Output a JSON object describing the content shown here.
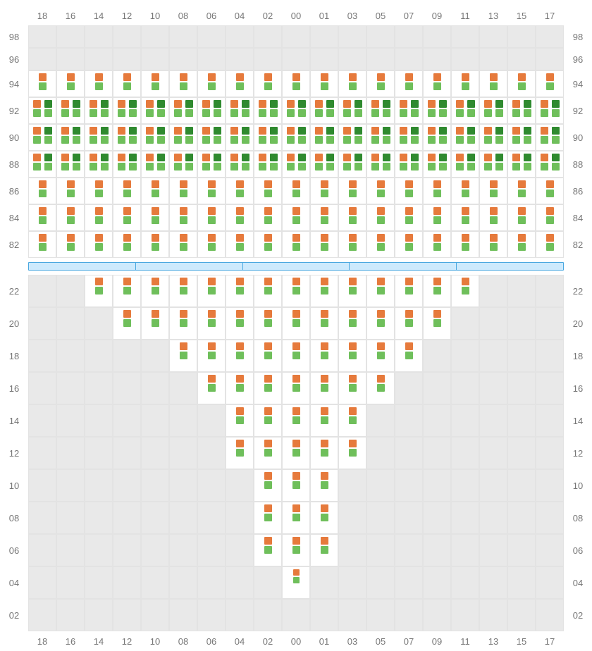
{
  "type": "layout-grid",
  "colors": {
    "orange": "#e67a3c",
    "lightGreen": "#6fbf5b",
    "darkGreen": "#2f8a2f",
    "cellBg": "#ffffff",
    "emptyBg": "#e9e9e9",
    "gridLine": "#e3e3e3",
    "labelColor": "#777777",
    "blueBarFill": "#cdeafd",
    "blueBarBorder": "#4aa8e0",
    "pageBg": "#ffffff"
  },
  "layout": {
    "diamond_row_height": 38,
    "diamond_narrow_row_height": 32,
    "cone_row_height": 46,
    "blue_segments": 5
  },
  "column_labels": [
    "18",
    "16",
    "14",
    "12",
    "10",
    "08",
    "06",
    "04",
    "02",
    "00",
    "01",
    "03",
    "05",
    "07",
    "09",
    "11",
    "13",
    "15",
    "17"
  ],
  "center_col_index": 9,
  "diamond": {
    "row_labels": [
      "98",
      "96",
      "94",
      "92",
      "90",
      "88",
      "86",
      "84",
      "82"
    ],
    "rows": [
      {
        "fill": false
      },
      {
        "fill": false
      },
      {
        "fill": true,
        "pattern": "single"
      },
      {
        "fill": true,
        "pattern": "double"
      },
      {
        "fill": true,
        "pattern": "double"
      },
      {
        "fill": true,
        "pattern": "double"
      },
      {
        "fill": true,
        "pattern": "single"
      },
      {
        "fill": true,
        "pattern": "single"
      },
      {
        "fill": true,
        "pattern": "single"
      }
    ]
  },
  "cone": {
    "row_labels": [
      "22",
      "20",
      "18",
      "16",
      "14",
      "12",
      "10",
      "08",
      "06",
      "04",
      "02"
    ],
    "rows": [
      {
        "span": 14,
        "pattern": "single"
      },
      {
        "span": 12,
        "pattern": "single"
      },
      {
        "span": 9,
        "pattern": "single"
      },
      {
        "span": 7,
        "pattern": "single"
      },
      {
        "span": 5,
        "pattern": "single"
      },
      {
        "span": 5,
        "pattern": "single"
      },
      {
        "span": 3,
        "pattern": "single"
      },
      {
        "span": 3,
        "pattern": "single"
      },
      {
        "span": 3,
        "pattern": "single"
      },
      {
        "span": 1,
        "pattern": "tiny"
      },
      {
        "span": 0,
        "pattern": "none"
      }
    ]
  }
}
